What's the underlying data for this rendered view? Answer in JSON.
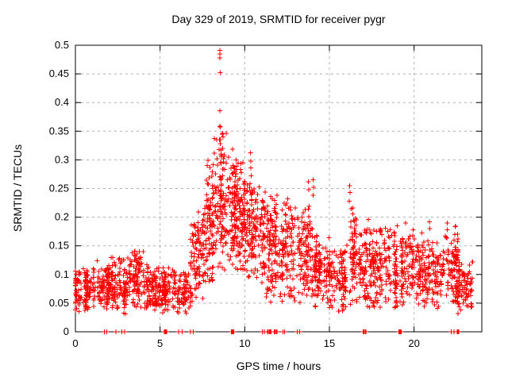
{
  "chart_data": {
    "type": "scatter",
    "title": "Day 329 of 2019, SRMTID for receiver pygr",
    "xlabel": "GPS time / hours",
    "ylabel": "SRMTID / TECUs",
    "xlim": [
      0,
      24
    ],
    "ylim": [
      0,
      0.5
    ],
    "xticks": [
      {
        "value": 0,
        "label": "0"
      },
      {
        "value": 5,
        "label": "5"
      },
      {
        "value": 10,
        "label": "10"
      },
      {
        "value": 15,
        "label": "15"
      },
      {
        "value": 20,
        "label": "20"
      }
    ],
    "yticks": [
      {
        "value": 0,
        "label": "0"
      },
      {
        "value": 0.05,
        "label": "0.05"
      },
      {
        "value": 0.1,
        "label": "0.1"
      },
      {
        "value": 0.15,
        "label": "0.15"
      },
      {
        "value": 0.2,
        "label": "0.2"
      },
      {
        "value": 0.25,
        "label": "0.25"
      },
      {
        "value": 0.3,
        "label": "0.3"
      },
      {
        "value": 0.35,
        "label": "0.35"
      },
      {
        "value": 0.4,
        "label": "0.4"
      },
      {
        "value": 0.45,
        "label": "0.45"
      },
      {
        "value": 0.5,
        "label": "0.5"
      }
    ],
    "grid": {
      "show": true,
      "color": "#b0b0b0",
      "dash": "3,4"
    },
    "axis_color": "#000000",
    "background": "#ffffff",
    "marker": {
      "shape": "plus",
      "color": "#ff0000",
      "size": 7
    },
    "legend": {
      "show": false
    },
    "series": [
      {
        "name": "SRMTID",
        "seed": 20191329,
        "bands": [
          {
            "x0": 0.0,
            "x1": 1.0,
            "y0": 0.035,
            "y1": 0.115,
            "n": 110
          },
          {
            "x0": 1.0,
            "x1": 2.0,
            "y0": 0.035,
            "y1": 0.125,
            "n": 110
          },
          {
            "x0": 2.0,
            "x1": 3.0,
            "y0": 0.03,
            "y1": 0.13,
            "n": 110
          },
          {
            "x0": 3.0,
            "x1": 4.0,
            "y0": 0.04,
            "y1": 0.142,
            "n": 110
          },
          {
            "x0": 4.0,
            "x1": 5.0,
            "y0": 0.035,
            "y1": 0.12,
            "n": 110
          },
          {
            "x0": 5.0,
            "x1": 6.0,
            "y0": 0.032,
            "y1": 0.115,
            "n": 100
          },
          {
            "x0": 6.0,
            "x1": 6.8,
            "y0": 0.03,
            "y1": 0.105,
            "n": 70
          },
          {
            "x0": 6.8,
            "x1": 7.6,
            "y0": 0.05,
            "y1": 0.21,
            "n": 95
          },
          {
            "x0": 7.6,
            "x1": 8.2,
            "y0": 0.07,
            "y1": 0.3,
            "n": 95
          },
          {
            "x0": 8.2,
            "x1": 8.9,
            "y0": 0.1,
            "y1": 0.35,
            "n": 115
          },
          {
            "x0": 8.9,
            "x1": 9.6,
            "y0": 0.1,
            "y1": 0.32,
            "n": 115
          },
          {
            "x0": 9.6,
            "x1": 10.4,
            "y0": 0.09,
            "y1": 0.3,
            "n": 115
          },
          {
            "x0": 10.4,
            "x1": 11.2,
            "y0": 0.08,
            "y1": 0.27,
            "n": 110
          },
          {
            "x0": 11.2,
            "x1": 12.0,
            "y0": 0.05,
            "y1": 0.245,
            "n": 110
          },
          {
            "x0": 12.0,
            "x1": 13.0,
            "y0": 0.05,
            "y1": 0.225,
            "n": 115
          },
          {
            "x0": 13.0,
            "x1": 14.0,
            "y0": 0.045,
            "y1": 0.225,
            "n": 115
          },
          {
            "x0": 14.0,
            "x1": 15.0,
            "y0": 0.04,
            "y1": 0.175,
            "n": 115
          },
          {
            "x0": 15.0,
            "x1": 16.0,
            "y0": 0.035,
            "y1": 0.155,
            "n": 105
          },
          {
            "x0": 16.0,
            "x1": 16.6,
            "y0": 0.045,
            "y1": 0.225,
            "n": 65
          },
          {
            "x0": 16.6,
            "x1": 17.6,
            "y0": 0.04,
            "y1": 0.18,
            "n": 105
          },
          {
            "x0": 17.6,
            "x1": 18.6,
            "y0": 0.04,
            "y1": 0.185,
            "n": 105
          },
          {
            "x0": 18.6,
            "x1": 19.6,
            "y0": 0.04,
            "y1": 0.175,
            "n": 105
          },
          {
            "x0": 19.6,
            "x1": 20.6,
            "y0": 0.04,
            "y1": 0.185,
            "n": 105
          },
          {
            "x0": 20.6,
            "x1": 21.6,
            "y0": 0.04,
            "y1": 0.165,
            "n": 105
          },
          {
            "x0": 21.6,
            "x1": 22.6,
            "y0": 0.045,
            "y1": 0.19,
            "n": 105
          },
          {
            "x0": 22.6,
            "x1": 23.45,
            "y0": 0.03,
            "y1": 0.125,
            "n": 80
          }
        ],
        "outliers": [
          [
            8.53,
            0.491
          ],
          [
            8.53,
            0.485
          ],
          [
            8.54,
            0.478
          ],
          [
            8.55,
            0.452
          ],
          [
            8.54,
            0.386
          ],
          [
            8.52,
            0.359
          ],
          [
            8.56,
            0.357
          ],
          [
            8.5,
            0.335
          ],
          [
            8.55,
            0.328
          ],
          [
            8.48,
            0.318
          ],
          [
            8.6,
            0.308
          ],
          [
            9.05,
            0.305
          ],
          [
            9.3,
            0.29
          ],
          [
            9.5,
            0.3
          ],
          [
            9.9,
            0.295
          ],
          [
            10.33,
            0.312
          ],
          [
            10.36,
            0.298
          ],
          [
            10.35,
            0.286
          ],
          [
            10.38,
            0.272
          ],
          [
            10.32,
            0.258
          ],
          [
            12.55,
            0.232
          ],
          [
            13.75,
            0.262
          ],
          [
            13.78,
            0.248
          ],
          [
            14.05,
            0.265
          ],
          [
            14.06,
            0.252
          ],
          [
            14.04,
            0.238
          ],
          [
            16.2,
            0.255
          ],
          [
            16.22,
            0.243
          ],
          [
            16.18,
            0.228
          ],
          [
            16.3,
            0.215
          ],
          [
            17.3,
            0.196
          ],
          [
            19.0,
            0.185
          ],
          [
            19.5,
            0.19
          ],
          [
            20.9,
            0.192
          ],
          [
            20.92,
            0.18
          ],
          [
            21.95,
            0.19
          ],
          [
            21.97,
            0.178
          ],
          [
            22.4,
            0.17
          ],
          [
            3.35,
            0.138
          ],
          [
            1.3,
            0.124
          ],
          [
            2.6,
            0.128
          ]
        ],
        "zeros": [
          1.7,
          1.85,
          2.4,
          2.75,
          2.9,
          5.25,
          5.3,
          5.35,
          5.4,
          6.1,
          6.3,
          6.8,
          6.95,
          9.2,
          9.25,
          9.3,
          9.35,
          11.05,
          11.15,
          11.35,
          11.4,
          11.45,
          11.5,
          11.55,
          11.75,
          11.8,
          11.85,
          11.9,
          12.25,
          12.35,
          13.1,
          13.25,
          17.0,
          17.05,
          17.1,
          17.15,
          19.1,
          19.15,
          19.2,
          19.25,
          22.2,
          22.35,
          22.55,
          22.6,
          22.65
        ]
      }
    ]
  }
}
